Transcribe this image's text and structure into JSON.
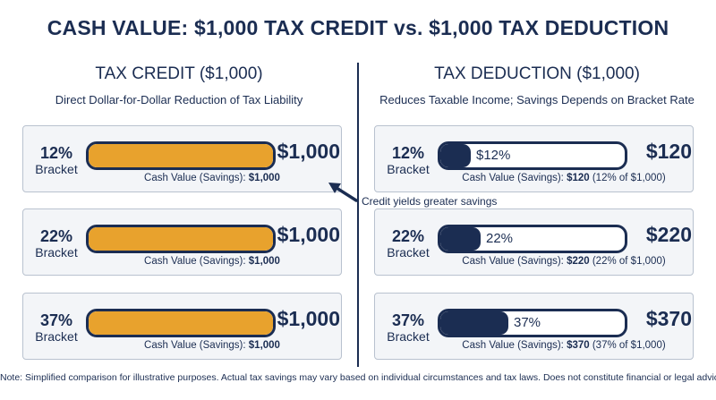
{
  "title": "CASH VALUE: $1,000 TAX CREDIT vs. $1,000 TAX DEDUCTION",
  "left": {
    "title": "TAX CREDIT ($1,000)",
    "subtitle": "Direct Dollar-for-Dollar Reduction of Tax Liability",
    "rows": [
      {
        "pct": "12%",
        "label": "Bracket",
        "amount": "$1,000",
        "caption_prefix": "Cash Value (Savings): ",
        "caption_value": "$1,000",
        "caption_suffix": ""
      },
      {
        "pct": "22%",
        "label": "Bracket",
        "amount": "$1,000",
        "caption_prefix": "Cash Value (Savings): ",
        "caption_value": "$1,000",
        "caption_suffix": ""
      },
      {
        "pct": "37%",
        "label": "Bracket",
        "amount": "$1,000",
        "caption_prefix": "Cash Value (Savings): ",
        "caption_value": "$1,000",
        "caption_suffix": ""
      }
    ]
  },
  "right": {
    "title": "TAX DEDUCTION ($1,000)",
    "subtitle": "Reduces Taxable Income; Savings Depends on Bracket Rate",
    "rows": [
      {
        "pct": "12%",
        "label": "Bracket",
        "bar_label": "$12%",
        "amount": "$120",
        "caption_prefix": "Cash Value (Savings): ",
        "caption_value": "$120",
        "caption_suffix": " (12% of $1,000)"
      },
      {
        "pct": "22%",
        "label": "Bracket",
        "bar_label": "22%",
        "amount": "$220",
        "caption_prefix": "Cash Value (Savings): ",
        "caption_value": "$220",
        "caption_suffix": " (22% of $1,000)"
      },
      {
        "pct": "37%",
        "label": "Bracket",
        "bar_label": "37%",
        "amount": "$370",
        "caption_prefix": "Cash Value (Savings): ",
        "caption_value": "$370",
        "caption_suffix": " (37% of $1,000)"
      }
    ]
  },
  "annotation": "Credit yields greater savings",
  "footnote": "Note: Simplified comparison for illustrative purposes. Actual tax savings may vary based on individual circumstances and tax laws. Does not constitute financial or legal advice.",
  "colors": {
    "credit": "#e8a22d",
    "deduction": "#1b2d52"
  },
  "chart_data": {
    "type": "bar",
    "categories": [
      "12%",
      "22%",
      "37%"
    ],
    "series": [
      {
        "name": "TAX CREDIT ($1,000)",
        "values": [
          1000,
          1000,
          1000
        ]
      },
      {
        "name": "TAX DEDUCTION ($1,000)",
        "values": [
          120,
          220,
          370
        ]
      }
    ],
    "title": "CASH VALUE: $1,000 TAX CREDIT vs. $1,000 TAX DEDUCTION",
    "ylim": [
      0,
      1000
    ]
  }
}
